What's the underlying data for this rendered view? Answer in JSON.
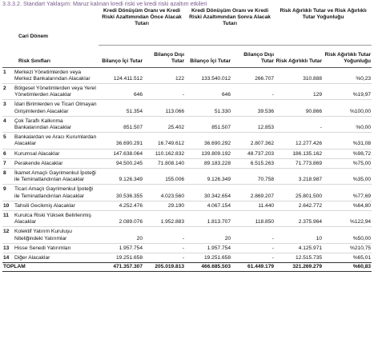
{
  "title": "3.3.3.2. Standart Yaklaşım: Maruz kalınan kredi riski ve kredi riski azaltım etkileri",
  "header": {
    "cari_donem": "Cari Dönem",
    "risk_siniflari": "Risk Sınıfları",
    "groups": [
      "Kredi Dönüşüm Oranı ve Kredi Riski Azaltımından Önce Alacak Tutarı",
      "Kredi Dönüşüm Oranı ve Kredi Riski Azaltımından Sonra Alacak Tutarı",
      "Risk Ağırlıklı Tutar ve Risk Ağırlıklı Tutar Yoğunluğu"
    ],
    "subcols": [
      "Bilanço İçi Tutar",
      "Bilanço Dışı Tutar",
      "Bilanço İçi Tutar",
      "Bilanço Dışı Tutar",
      "Risk Ağırlıklı Tutar",
      "Risk Ağırlıklı Tutar Yoğunluğu"
    ]
  },
  "rows": [
    {
      "no": "1",
      "label": "Merkezi Yönetimlerden veya Merkez Bankalarından Alacaklar",
      "values": [
        "124.411.512",
        "122",
        "133.540.012",
        "266.707",
        "310.888",
        "%0,23"
      ]
    },
    {
      "no": "2",
      "label": "Bölgesel Yönetimlerden veya Yerel Yönetimlerden Alacaklar",
      "values": [
        "646",
        "-",
        "646",
        "-",
        "129",
        "%19,97"
      ]
    },
    {
      "no": "3",
      "label": "İdari Birimlerden ve Ticari Olmayan Girişimlerden Alacaklar",
      "values": [
        "51.354",
        "113.066",
        "51.330",
        "39.536",
        "90.866",
        "%100,00"
      ]
    },
    {
      "no": "4",
      "label": "Çok Taraflı Kalkınma Bankalarından Alacaklar",
      "values": [
        "851.507",
        "25.402",
        "851.507",
        "12.853",
        "-",
        "%0,00"
      ]
    },
    {
      "no": "5",
      "label": "Bankalardan ve Aracı Kurumlardan Alacaklar",
      "values": [
        "36.690.291",
        "16.749.612",
        "36.690.292",
        "2.807.362",
        "12.277.426",
        "%31,08"
      ]
    },
    {
      "no": "6",
      "label": "Kurumsal Alacaklar",
      "values": [
        "147.638.064",
        "110.162.832",
        "139.809.192",
        "48.737.203",
        "186.135.162",
        "%98,72"
      ]
    },
    {
      "no": "7",
      "label": "Perakende Alacaklar",
      "values": [
        "94.500.245",
        "71.808.140",
        "89.183.228",
        "6.515.263",
        "71.773.869",
        "%75,00"
      ]
    },
    {
      "no": "8",
      "label": "İkamet Amaçlı Gayrimenkul İpoteği ile Teminatlandırılan Alacaklar",
      "values": [
        "9.126.349",
        "155.006",
        "9.126.349",
        "70.758",
        "3.218.987",
        "%35,00"
      ]
    },
    {
      "no": "9",
      "label": "Ticari Amaçlı Gayrimenkul İpoteği ile Teminatlandırılan Alacaklar",
      "values": [
        "30.536.355",
        "4.023.560",
        "30.342.654",
        "2.869.207",
        "25.801.500",
        "%77,69"
      ]
    },
    {
      "no": "10",
      "label": "Tahsili Gecikmiş Alacaklar",
      "values": [
        "4.252.476",
        "29.190",
        "4.067.154",
        "11.440",
        "2.642.772",
        "%64,80"
      ]
    },
    {
      "no": "11",
      "label": "Kurulca Riski Yüksek Belirlenmiş Alacaklar",
      "values": [
        "2.089.076",
        "1.952.883",
        "1.813.707",
        "118.850",
        "2.375.964",
        "%122,94"
      ]
    },
    {
      "no": "12",
      "label": "Kolektif Yatırım Kuruluşu Niteliğindeki Yatırımlar",
      "values": [
        "20",
        "-",
        "20",
        "-",
        "10",
        "%50,00"
      ]
    },
    {
      "no": "13",
      "label": "Hisse Senedi Yatırımları",
      "values": [
        "1.957.754",
        "-",
        "1.957.754",
        "-",
        "4.125.971",
        "%210,75"
      ]
    },
    {
      "no": "14",
      "label": "Diğer Alacaklar",
      "values": [
        "19.251.658",
        "-",
        "19.251.658",
        "-",
        "12.515.735",
        "%65,01"
      ]
    }
  ],
  "total": {
    "label": "TOPLAM",
    "values": [
      "471.357.307",
      "205.019.813",
      "466.685.503",
      "61.449.179",
      "321.269.279",
      "%60,83"
    ]
  }
}
